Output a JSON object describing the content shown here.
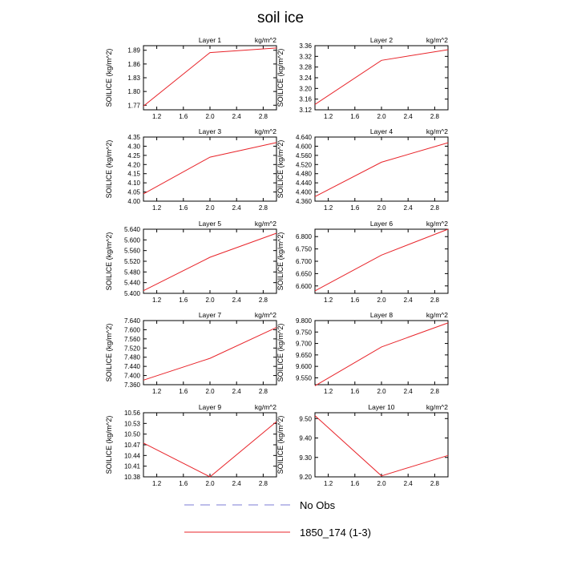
{
  "page": {
    "title": "soil ice"
  },
  "legend": {
    "items": [
      {
        "label": "No Obs",
        "color": "#7b7bd6",
        "dash": true
      },
      {
        "label": "1850_174 (1-3)",
        "color": "#e8242a",
        "dash": false
      }
    ]
  },
  "chart_data": [
    {
      "type": "line",
      "title": "Layer 1",
      "units": "kg/m^2",
      "ylabel": "SOILICE  (kg/m^2)",
      "x": [
        1,
        2,
        3
      ],
      "xlim": [
        1,
        3
      ],
      "xticks": [
        "1.2",
        "1.6",
        "2.0",
        "2.4",
        "2.8"
      ],
      "ylim": [
        1.76,
        1.9
      ],
      "yticks": [
        "1.77",
        "1.80",
        "1.83",
        "1.86",
        "1.89"
      ],
      "series": [
        {
          "values": [
            1.768,
            1.885,
            1.895
          ]
        }
      ]
    },
    {
      "type": "line",
      "title": "Layer 2",
      "units": "kg/m^2",
      "ylabel": "SOILICE  (kg/m^2)",
      "x": [
        1,
        2,
        3
      ],
      "xlim": [
        1,
        3
      ],
      "xticks": [
        "1.2",
        "1.6",
        "2.0",
        "2.4",
        "2.8"
      ],
      "ylim": [
        3.12,
        3.36
      ],
      "yticks": [
        "3.12",
        "3.16",
        "3.20",
        "3.24",
        "3.28",
        "3.32",
        "3.36"
      ],
      "series": [
        {
          "values": [
            3.14,
            3.305,
            3.345
          ]
        }
      ]
    },
    {
      "type": "line",
      "title": "Layer 3",
      "units": "kg/m^2",
      "ylabel": "SOILICE  (kg/m^2)",
      "x": [
        1,
        2,
        3
      ],
      "xlim": [
        1,
        3
      ],
      "xticks": [
        "1.2",
        "1.6",
        "2.0",
        "2.4",
        "2.8"
      ],
      "ylim": [
        4.0,
        4.35
      ],
      "yticks": [
        "4.00",
        "4.05",
        "4.10",
        "4.15",
        "4.20",
        "4.25",
        "4.30",
        "4.35"
      ],
      "series": [
        {
          "values": [
            4.04,
            4.24,
            4.32
          ]
        }
      ]
    },
    {
      "type": "line",
      "title": "Layer 4",
      "units": "kg/m^2",
      "ylabel": "SOILICE  (kg/m^2)",
      "x": [
        1,
        2,
        3
      ],
      "xlim": [
        1,
        3
      ],
      "xticks": [
        "1.2",
        "1.6",
        "2.0",
        "2.4",
        "2.8"
      ],
      "ylim": [
        4.36,
        4.64
      ],
      "yticks": [
        "4.360",
        "4.400",
        "4.440",
        "4.480",
        "4.520",
        "4.560",
        "4.600",
        "4.640"
      ],
      "series": [
        {
          "values": [
            4.38,
            4.53,
            4.615
          ]
        }
      ]
    },
    {
      "type": "line",
      "title": "Layer 5",
      "units": "kg/m^2",
      "ylabel": "SOILICE  (kg/m^2)",
      "x": [
        1,
        2,
        3
      ],
      "xlim": [
        1,
        3
      ],
      "xticks": [
        "1.2",
        "1.6",
        "2.0",
        "2.4",
        "2.8"
      ],
      "ylim": [
        5.4,
        5.64
      ],
      "yticks": [
        "5.400",
        "5.440",
        "5.480",
        "5.520",
        "5.560",
        "5.600",
        "5.640"
      ],
      "series": [
        {
          "values": [
            5.41,
            5.535,
            5.625
          ]
        }
      ]
    },
    {
      "type": "line",
      "title": "Layer 6",
      "units": "kg/m^2",
      "ylabel": "SOILICE  (kg/m^2)",
      "x": [
        1,
        2,
        3
      ],
      "xlim": [
        1,
        3
      ],
      "xticks": [
        "1.2",
        "1.6",
        "2.0",
        "2.4",
        "2.8"
      ],
      "ylim": [
        6.57,
        6.83
      ],
      "yticks": [
        "6.600",
        "6.650",
        "6.700",
        "6.750",
        "6.800"
      ],
      "series": [
        {
          "values": [
            6.58,
            6.725,
            6.83
          ]
        }
      ]
    },
    {
      "type": "line",
      "title": "Layer 7",
      "units": "kg/m^2",
      "ylabel": "SOILICE  (kg/m^2)",
      "x": [
        1,
        2,
        3
      ],
      "xlim": [
        1,
        3
      ],
      "xticks": [
        "1.2",
        "1.6",
        "2.0",
        "2.4",
        "2.8"
      ],
      "ylim": [
        7.36,
        7.64
      ],
      "yticks": [
        "7.360",
        "7.400",
        "7.440",
        "7.480",
        "7.520",
        "7.560",
        "7.600",
        "7.640"
      ],
      "series": [
        {
          "values": [
            7.38,
            7.475,
            7.61
          ]
        }
      ]
    },
    {
      "type": "line",
      "title": "Layer 8",
      "units": "kg/m^2",
      "ylabel": "SOILICE  (kg/m^2)",
      "x": [
        1,
        2,
        3
      ],
      "xlim": [
        1,
        3
      ],
      "xticks": [
        "1.2",
        "1.6",
        "2.0",
        "2.4",
        "2.8"
      ],
      "ylim": [
        9.52,
        9.8
      ],
      "yticks": [
        "9.550",
        "9.600",
        "9.650",
        "9.700",
        "9.750",
        "9.800"
      ],
      "series": [
        {
          "values": [
            9.515,
            9.685,
            9.79
          ]
        }
      ]
    },
    {
      "type": "line",
      "title": "Layer 9",
      "units": "kg/m^2",
      "ylabel": "SOILICE  (kg/m^2)",
      "x": [
        1,
        2,
        3
      ],
      "xlim": [
        1,
        3
      ],
      "xticks": [
        "1.2",
        "1.6",
        "2.0",
        "2.4",
        "2.8"
      ],
      "ylim": [
        10.38,
        10.56
      ],
      "yticks": [
        "10.38",
        "10.41",
        "10.44",
        "10.47",
        "10.50",
        "10.53",
        "10.56"
      ],
      "series": [
        {
          "values": [
            10.475,
            10.38,
            10.535
          ]
        }
      ]
    },
    {
      "type": "line",
      "title": "Layer 10",
      "units": "kg/m^2",
      "ylabel": "SOILICE  (kg/m^2)",
      "x": [
        1,
        2,
        3
      ],
      "xlim": [
        1,
        3
      ],
      "xticks": [
        "1.2",
        "1.6",
        "2.0",
        "2.4",
        "2.8"
      ],
      "ylim": [
        9.2,
        9.53
      ],
      "yticks": [
        "9.20",
        "9.30",
        "9.40",
        "9.50"
      ],
      "series": [
        {
          "values": [
            9.515,
            9.205,
            9.31
          ]
        }
      ]
    }
  ]
}
